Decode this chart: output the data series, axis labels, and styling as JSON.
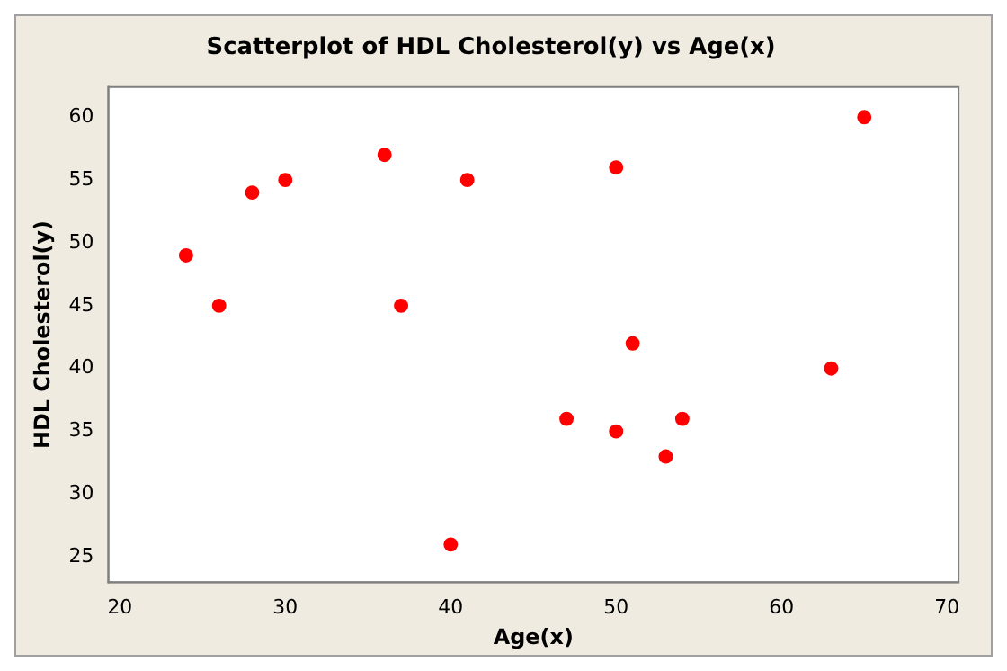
{
  "chart_data": {
    "type": "scatter",
    "title": "Scatterplot of HDL Cholesterol(y) vs Age(x)",
    "xlabel": "Age(x)",
    "ylabel": "HDL Cholesterol(y)",
    "x": [
      24,
      26,
      28,
      30,
      36,
      37,
      40,
      41,
      47,
      50,
      50,
      51,
      53,
      54,
      63,
      65
    ],
    "values": [
      49,
      45,
      54,
      55,
      57,
      45,
      26,
      55,
      36,
      56,
      35,
      42,
      33,
      36,
      40,
      60
    ],
    "color": "#ff0000",
    "marker": "circle",
    "grid": false,
    "legend": false,
    "xlim": [
      19.3,
      70.7
    ],
    "ylim": [
      23,
      62.4
    ],
    "xticks": [
      20,
      30,
      40,
      50,
      60,
      70
    ],
    "yticks": [
      25,
      30,
      35,
      40,
      45,
      50,
      55,
      60
    ]
  }
}
